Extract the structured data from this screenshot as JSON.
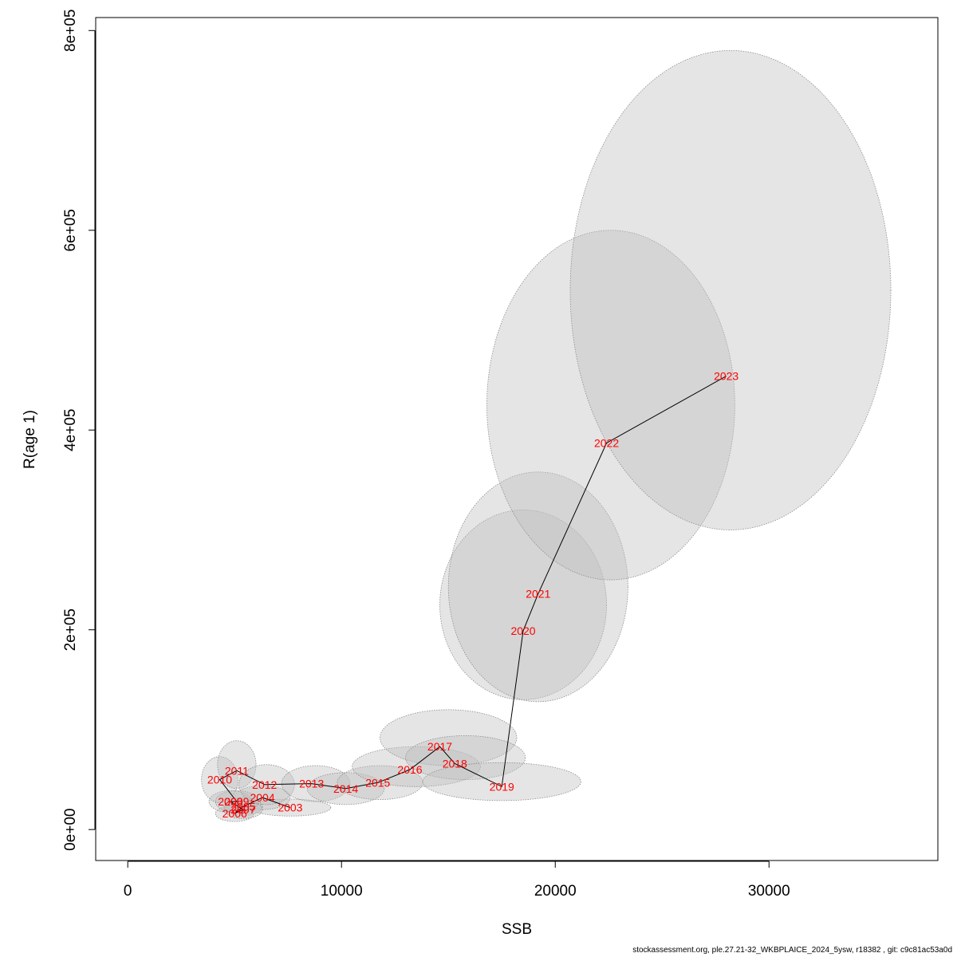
{
  "chart_data": {
    "type": "scatter",
    "xlabel": "SSB",
    "ylabel": "R(age 1)",
    "xlim": [
      -1500,
      37900
    ],
    "ylim": [
      -31000,
      813000
    ],
    "x_ticks": [
      {
        "value": 0,
        "label": "0"
      },
      {
        "value": 10000,
        "label": "10000"
      },
      {
        "value": 20000,
        "label": "20000"
      },
      {
        "value": 30000,
        "label": "30000"
      }
    ],
    "y_ticks": [
      {
        "value": 0,
        "label": "0e+00"
      },
      {
        "value": 200000,
        "label": "2e+05"
      },
      {
        "value": 400000,
        "label": "4e+05"
      },
      {
        "value": 600000,
        "label": "6e+05"
      },
      {
        "value": 800000,
        "label": "8e+05"
      }
    ],
    "colors": {
      "label": "#ff0000",
      "line": "#000000",
      "ellipse_fill": "#bebebe",
      "ellipse_stroke": "#8c8c8c"
    },
    "points": [
      {
        "year": "2003",
        "ssb": 7600,
        "r": 22000
      },
      {
        "year": "2004",
        "ssb": 6300,
        "r": 32000
      },
      {
        "year": "2005",
        "ssb": 5400,
        "r": 23000
      },
      {
        "year": "2006",
        "ssb": 5000,
        "r": 16000
      },
      {
        "year": "2007",
        "ssb": 5400,
        "r": 20000
      },
      {
        "year": "2008",
        "ssb": 4800,
        "r": 28000
      },
      {
        "year": "2009",
        "ssb": 5100,
        "r": 28000
      },
      {
        "year": "2010",
        "ssb": 4300,
        "r": 50000
      },
      {
        "year": "2011",
        "ssb": 5100,
        "r": 59000
      },
      {
        "year": "2012",
        "ssb": 6400,
        "r": 45000
      },
      {
        "year": "2013",
        "ssb": 8600,
        "r": 46000
      },
      {
        "year": "2014",
        "ssb": 10200,
        "r": 41000
      },
      {
        "year": "2015",
        "ssb": 11700,
        "r": 47000
      },
      {
        "year": "2016",
        "ssb": 13200,
        "r": 60000
      },
      {
        "year": "2017",
        "ssb": 14600,
        "r": 83000
      },
      {
        "year": "2018",
        "ssb": 15300,
        "r": 66000
      },
      {
        "year": "2019",
        "ssb": 17500,
        "r": 43000
      },
      {
        "year": "2020",
        "ssb": 18500,
        "r": 199000
      },
      {
        "year": "2021",
        "ssb": 19200,
        "r": 236000
      },
      {
        "year": "2022",
        "ssb": 22400,
        "r": 387000
      },
      {
        "year": "2023",
        "ssb": 28000,
        "r": 454000
      }
    ],
    "ellipses": [
      {
        "year": "2003",
        "cx": 7600,
        "cy": 22000,
        "rx": 1900,
        "ry": 8500,
        "angle_deg": 0
      },
      {
        "year": "2004",
        "cx": 6300,
        "cy": 32000,
        "rx": 1300,
        "ry": 12000,
        "angle_deg": 0
      },
      {
        "year": "2005",
        "cx": 5400,
        "cy": 23000,
        "rx": 900,
        "ry": 9000,
        "angle_deg": 0
      },
      {
        "year": "2006",
        "cx": 5000,
        "cy": 16000,
        "rx": 900,
        "ry": 8000,
        "angle_deg": 0
      },
      {
        "year": "2007",
        "cx": 5400,
        "cy": 20000,
        "rx": 900,
        "ry": 9000,
        "angle_deg": 0
      },
      {
        "year": "2008",
        "cx": 4800,
        "cy": 28000,
        "rx": 1000,
        "ry": 11000,
        "angle_deg": 0
      },
      {
        "year": "2009",
        "cx": 5100,
        "cy": 28000,
        "rx": 1000,
        "ry": 11000,
        "angle_deg": 0
      },
      {
        "year": "2010",
        "cx": 4300,
        "cy": 50000,
        "rx": 850,
        "ry": 23000,
        "angle_deg": 0
      },
      {
        "year": "2011",
        "cx": 5100,
        "cy": 65000,
        "rx": 900,
        "ry": 24000,
        "angle_deg": 0
      },
      {
        "year": "2012",
        "cx": 6500,
        "cy": 45000,
        "rx": 1300,
        "ry": 20000,
        "angle_deg": 0
      },
      {
        "year": "2013",
        "cx": 8800,
        "cy": 46000,
        "rx": 1600,
        "ry": 18000,
        "angle_deg": 0
      },
      {
        "year": "2014",
        "cx": 10200,
        "cy": 41000,
        "rx": 1800,
        "ry": 16000,
        "angle_deg": 0
      },
      {
        "year": "2015",
        "cx": 11800,
        "cy": 47000,
        "rx": 2000,
        "ry": 17000,
        "angle_deg": 0
      },
      {
        "year": "2016",
        "cx": 13500,
        "cy": 63000,
        "rx": 3000,
        "ry": 20000,
        "angle_deg": 0
      },
      {
        "year": "2017",
        "cx": 15000,
        "cy": 92000,
        "rx": 3200,
        "ry": 28000,
        "angle_deg": 0
      },
      {
        "year": "2018",
        "cx": 15800,
        "cy": 72000,
        "rx": 2800,
        "ry": 22000,
        "angle_deg": 0
      },
      {
        "year": "2019",
        "cx": 17500,
        "cy": 48000,
        "rx": 3700,
        "ry": 19000,
        "angle_deg": 0
      },
      {
        "year": "2020",
        "cx": 18500,
        "cy": 225000,
        "rx": 3900,
        "ry": 95000,
        "angle_deg": 0
      },
      {
        "year": "2021",
        "cx": 19200,
        "cy": 243000,
        "rx": 4200,
        "ry": 115000,
        "angle_deg": 0
      },
      {
        "year": "2022",
        "cx": 22600,
        "cy": 425000,
        "rx": 5800,
        "ry": 175000,
        "angle_deg": 0
      },
      {
        "year": "2023",
        "cx": 28200,
        "cy": 540000,
        "rx": 7500,
        "ry": 240000,
        "angle_deg": 0
      }
    ]
  },
  "footer_text": "stockassessment.org, ple.27.21-32_WKBPLAICE_2024_5ysw, r18382 , git: c9c81ac53a0d"
}
